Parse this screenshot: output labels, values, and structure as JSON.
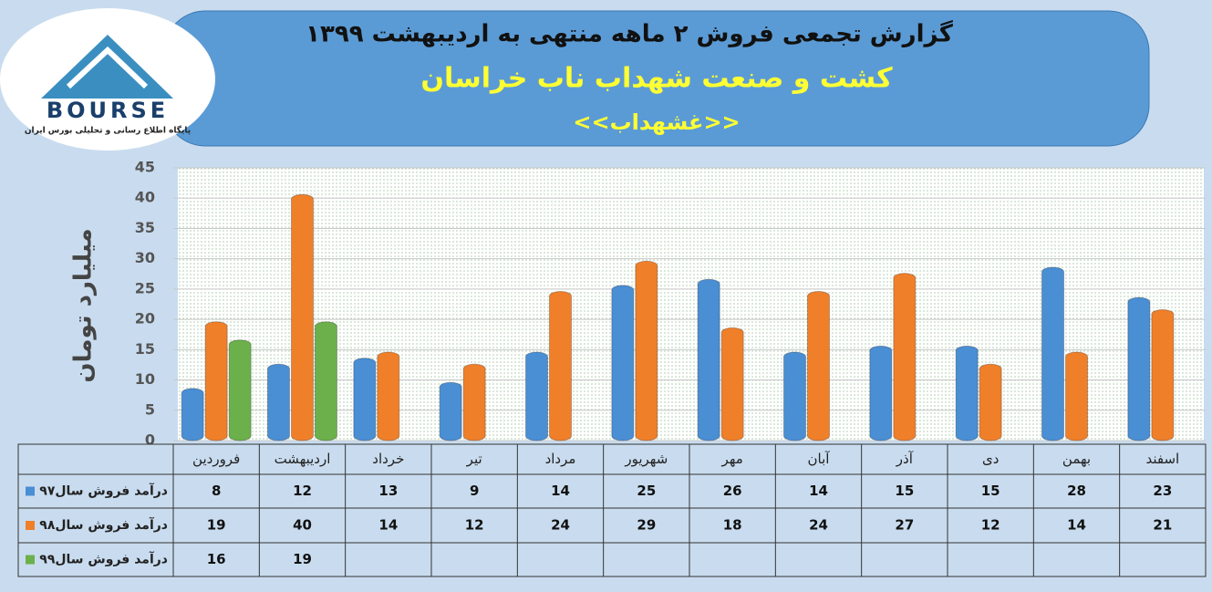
{
  "logo": {
    "name": "BOURSE",
    "tagline": "پایگاه اطلاع رسانی و تحلیلی بورس ایران"
  },
  "chart_data": {
    "type": "bar",
    "title": "گزارش تجمعی فروش ۲ ماهه منتهی به اردیبهشت ۱۳۹۹",
    "subtitle": "کشت و صنعت شهداب ناب خراسان",
    "symbol": "<<غشهداب>>",
    "y_label": "میلیارد تومان",
    "categories": [
      "فروردین",
      "اردیبهشت",
      "خرداد",
      "تیر",
      "مرداد",
      "شهریور",
      "مهر",
      "آبان",
      "آذر",
      "دی",
      "بهمن",
      "اسفند"
    ],
    "series": [
      {
        "name": "درآمد فروش سال۹۷",
        "color": "#4a8ed4",
        "values": [
          8,
          12,
          13,
          9,
          14,
          25,
          26,
          14,
          15,
          15,
          28,
          23
        ]
      },
      {
        "name": "درآمد فروش سال۹۸",
        "color": "#f07f2a",
        "values": [
          19,
          40,
          14,
          12,
          24,
          29,
          18,
          24,
          27,
          12,
          14,
          21
        ]
      },
      {
        "name": "درآمد فروش سال۹۹",
        "color": "#6bb04a",
        "values": [
          16,
          19,
          null,
          null,
          null,
          null,
          null,
          null,
          null,
          null,
          null,
          null
        ]
      }
    ],
    "ylim": [
      0,
      45
    ],
    "yticks": [
      0,
      5,
      10,
      15,
      20,
      25,
      30,
      35,
      40,
      45
    ],
    "grid": true
  }
}
